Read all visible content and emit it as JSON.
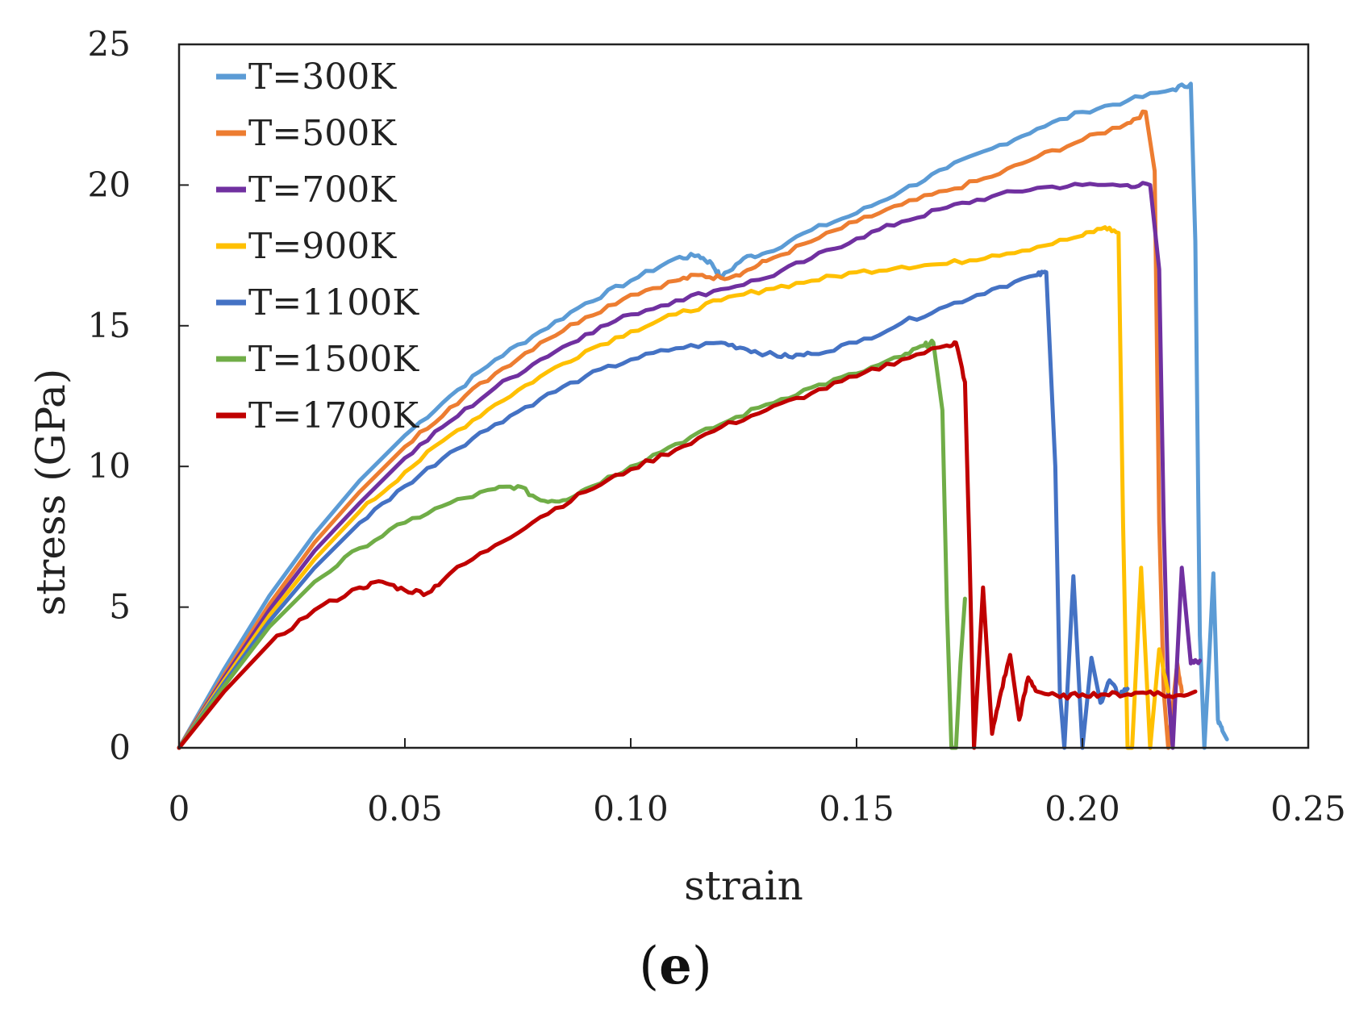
{
  "chart_data": {
    "type": "line",
    "title": "",
    "xlabel": "strain",
    "ylabel": "stress (GPa)",
    "xlim": [
      0,
      0.25
    ],
    "ylim": [
      0,
      25
    ],
    "xticks": [
      0,
      0.05,
      0.1,
      0.15,
      0.2,
      0.25
    ],
    "xtick_labels": [
      "0",
      "0.05",
      "0.10",
      "0.15",
      "0.20",
      "0.25"
    ],
    "yticks": [
      0,
      5,
      10,
      15,
      20,
      25
    ],
    "ytick_labels": [
      "0",
      "5",
      "10",
      "15",
      "20",
      "25"
    ],
    "legend_position": "top-left",
    "series": [
      {
        "name": "T=300K",
        "color": "#5b9bd5",
        "x": [
          0,
          0.01,
          0.02,
          0.03,
          0.04,
          0.05,
          0.06,
          0.07,
          0.08,
          0.09,
          0.1,
          0.11,
          0.115,
          0.118,
          0.12,
          0.125,
          0.13,
          0.14,
          0.15,
          0.16,
          0.17,
          0.18,
          0.19,
          0.2,
          0.21,
          0.22,
          0.224,
          0.225,
          0.226,
          0.227,
          0.228,
          0.229,
          0.23,
          0.231,
          0.232
        ],
        "y": [
          0,
          2.8,
          5.4,
          7.6,
          9.5,
          11.1,
          12.5,
          13.8,
          14.8,
          15.8,
          16.6,
          17.4,
          17.5,
          17.2,
          16.7,
          17.4,
          17.6,
          18.4,
          19.0,
          19.8,
          20.6,
          21.3,
          22.0,
          22.6,
          23.0,
          23.4,
          23.6,
          18,
          4,
          0,
          3,
          6.2,
          1,
          0.6,
          0.3
        ]
      },
      {
        "name": "T=500K",
        "color": "#ed7d31",
        "x": [
          0,
          0.01,
          0.02,
          0.03,
          0.04,
          0.05,
          0.06,
          0.07,
          0.08,
          0.09,
          0.1,
          0.11,
          0.115,
          0.12,
          0.125,
          0.13,
          0.14,
          0.15,
          0.16,
          0.17,
          0.18,
          0.19,
          0.2,
          0.21,
          0.214,
          0.216,
          0.217,
          0.218,
          0.219,
          0.221,
          0.222
        ],
        "y": [
          0,
          2.6,
          5.1,
          7.3,
          9.1,
          10.7,
          12.1,
          13.3,
          14.4,
          15.3,
          16.1,
          16.6,
          16.8,
          16.7,
          16.9,
          17.3,
          18.0,
          18.7,
          19.3,
          19.8,
          20.3,
          21.0,
          21.6,
          22.2,
          22.6,
          20.5,
          8,
          2,
          0,
          3,
          2
        ]
      },
      {
        "name": "T=700K",
        "color": "#7030a0",
        "x": [
          0,
          0.01,
          0.02,
          0.03,
          0.04,
          0.05,
          0.06,
          0.07,
          0.08,
          0.09,
          0.1,
          0.11,
          0.12,
          0.13,
          0.14,
          0.15,
          0.16,
          0.17,
          0.18,
          0.19,
          0.2,
          0.21,
          0.215,
          0.217,
          0.218,
          0.219,
          0.22,
          0.222,
          0.224,
          0.226
        ],
        "y": [
          0,
          2.5,
          4.9,
          7.0,
          8.7,
          10.3,
          11.6,
          12.8,
          13.8,
          14.7,
          15.4,
          15.9,
          16.3,
          16.7,
          17.4,
          18.1,
          18.7,
          19.2,
          19.6,
          19.9,
          20.0,
          20.0,
          20.0,
          17,
          8,
          2,
          0,
          6.4,
          3,
          3.1
        ]
      },
      {
        "name": "T=900K",
        "color": "#ffc000",
        "x": [
          0,
          0.01,
          0.02,
          0.03,
          0.04,
          0.05,
          0.06,
          0.07,
          0.08,
          0.09,
          0.1,
          0.11,
          0.12,
          0.13,
          0.14,
          0.15,
          0.16,
          0.17,
          0.18,
          0.19,
          0.2,
          0.205,
          0.208,
          0.209,
          0.21,
          0.211,
          0.213,
          0.215,
          0.217,
          0.219
        ],
        "y": [
          0,
          2.4,
          4.7,
          6.7,
          8.4,
          9.8,
          11.1,
          12.2,
          13.2,
          14.1,
          14.8,
          15.4,
          15.9,
          16.3,
          16.6,
          16.9,
          17.1,
          17.2,
          17.5,
          17.8,
          18.2,
          18.5,
          18.3,
          8,
          0,
          0,
          6.4,
          0,
          3.5,
          2
        ]
      },
      {
        "name": "T=1100K",
        "color": "#4472c4",
        "x": [
          0,
          0.01,
          0.02,
          0.03,
          0.04,
          0.05,
          0.06,
          0.07,
          0.08,
          0.09,
          0.1,
          0.11,
          0.12,
          0.125,
          0.13,
          0.135,
          0.14,
          0.15,
          0.16,
          0.17,
          0.18,
          0.19,
          0.192,
          0.194,
          0.195,
          0.196,
          0.198,
          0.2,
          0.202,
          0.204,
          0.206,
          0.208,
          0.21
        ],
        "y": [
          0,
          2.3,
          4.5,
          6.4,
          8.0,
          9.3,
          10.5,
          11.5,
          12.4,
          13.2,
          13.8,
          14.2,
          14.4,
          14.2,
          14.0,
          13.9,
          14.0,
          14.4,
          15.1,
          15.7,
          16.3,
          16.8,
          16.9,
          10,
          2,
          0,
          6.1,
          0,
          3.2,
          1.6,
          2.4,
          1.9,
          2.1
        ]
      },
      {
        "name": "T=1500K",
        "color": "#70ad47",
        "x": [
          0,
          0.01,
          0.02,
          0.03,
          0.04,
          0.05,
          0.06,
          0.07,
          0.075,
          0.08,
          0.085,
          0.09,
          0.1,
          0.11,
          0.12,
          0.13,
          0.14,
          0.15,
          0.16,
          0.165,
          0.167,
          0.169,
          0.17,
          0.171,
          0.172,
          0.173,
          0.174
        ],
        "y": [
          0,
          2.2,
          4.3,
          5.9,
          7.1,
          8.0,
          8.7,
          9.2,
          9.3,
          8.8,
          8.8,
          9.2,
          10.0,
          10.8,
          11.5,
          12.2,
          12.8,
          13.3,
          13.9,
          14.3,
          14.4,
          12,
          5,
          0,
          0,
          3,
          5.3
        ]
      },
      {
        "name": "T=1700K",
        "color": "#c00000",
        "x": [
          0,
          0.01,
          0.02,
          0.03,
          0.04,
          0.045,
          0.05,
          0.055,
          0.06,
          0.07,
          0.08,
          0.09,
          0.1,
          0.11,
          0.12,
          0.13,
          0.14,
          0.15,
          0.16,
          0.17,
          0.172,
          0.174,
          0.175,
          0.176,
          0.178,
          0.18,
          0.182,
          0.184,
          0.186,
          0.188,
          0.19,
          0.195,
          0.2,
          0.205,
          0.21,
          0.215,
          0.22,
          0.225
        ],
        "y": [
          0,
          2.0,
          3.7,
          4.9,
          5.7,
          5.9,
          5.6,
          5.5,
          6.2,
          7.2,
          8.2,
          9.1,
          9.9,
          10.6,
          11.4,
          12.0,
          12.6,
          13.2,
          13.8,
          14.3,
          14.4,
          13,
          7,
          0,
          5.7,
          0.5,
          2,
          3.3,
          1,
          2.5,
          2.0,
          1.8,
          1.9,
          1.9,
          1.9,
          2.0,
          1.8,
          2.0
        ]
      }
    ]
  },
  "panel_label": "e"
}
